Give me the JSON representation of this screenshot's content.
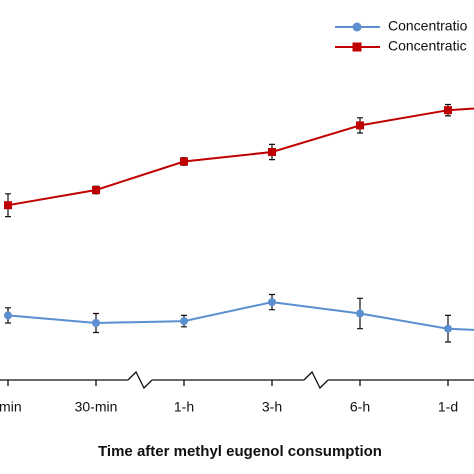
{
  "chart_data": {
    "type": "line",
    "x_label": "Time after methyl eugenol consumption",
    "categories": [
      "-min",
      "30-min",
      "1-h",
      "3-h",
      "6-h",
      "1-d",
      null
    ],
    "ylim": [
      0,
      100
    ],
    "series": [
      {
        "name": "Concentratio",
        "color": "#5b8fd0",
        "marker": "circle",
        "values": [
          17,
          15,
          15.5,
          20.5,
          17.5,
          13.5,
          12.5
        ],
        "errors": [
          2,
          2.5,
          1.5,
          2,
          4,
          3.5,
          0
        ]
      },
      {
        "name": "Concentratic",
        "color": "#c00000",
        "marker": "square",
        "values": [
          46,
          50,
          57.5,
          60,
          67,
          71,
          72.5
        ],
        "errors": [
          3,
          1,
          1,
          2,
          2,
          1.5,
          1
        ]
      }
    ]
  }
}
